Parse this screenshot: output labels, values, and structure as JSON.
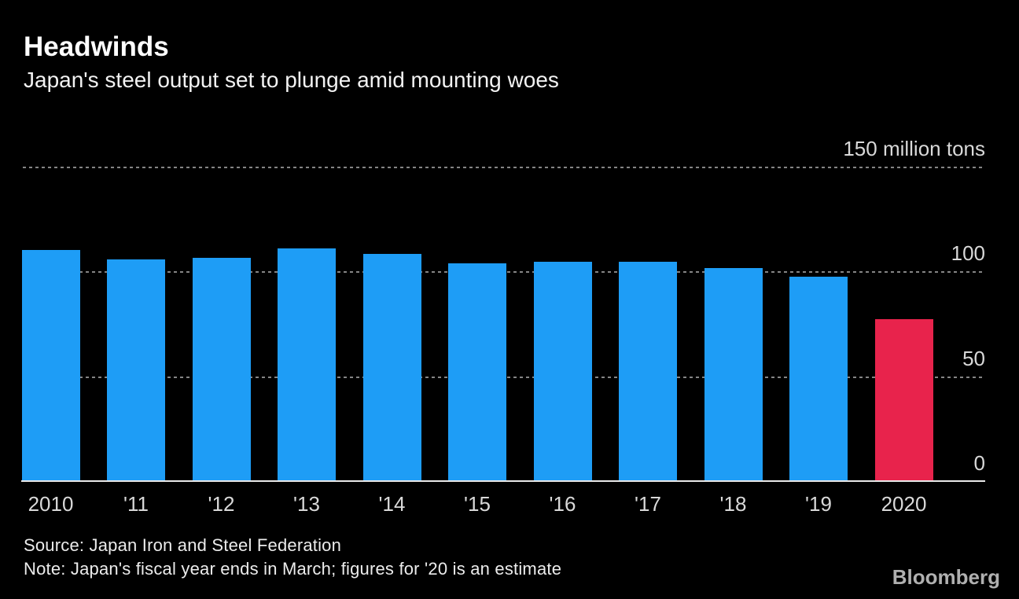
{
  "header": {
    "title": "Headwinds",
    "subtitle": "Japan's steel output set to plunge amid mounting woes"
  },
  "chart_data": {
    "type": "bar",
    "title": "Headwinds",
    "subtitle": "Japan's steel output set to plunge amid mounting woes",
    "categories": [
      "2010",
      "'11",
      "'12",
      "'13",
      "'14",
      "'15",
      "'16",
      "'17",
      "'18",
      "'19",
      "2020"
    ],
    "values": [
      110.7,
      106.0,
      107.0,
      111.4,
      108.8,
      104.2,
      105.0,
      104.9,
      102.0,
      98.0,
      77.5
    ],
    "unit": "million tons",
    "ylim": [
      0,
      150
    ],
    "yticks": [
      {
        "value": 150,
        "label": "150 million tons"
      },
      {
        "value": 100,
        "label": "100"
      },
      {
        "value": 50,
        "label": "50"
      },
      {
        "value": 0,
        "label": "0"
      }
    ],
    "grid": "horizontal-dotted",
    "legend": "none",
    "colors": {
      "bar_default": "#1e9df6",
      "bar_highlight": "#e8234c",
      "background": "#000000",
      "gridline": "#858585",
      "axis_line": "#e9e9e9",
      "tick_text": "#d9d9d9"
    },
    "highlight_index": 10
  },
  "footer": {
    "source": "Source: Japan Iron and Steel Federation",
    "note": "Note: Japan's fiscal year ends in March; figures for '20 is an estimate",
    "brand": "Bloomberg"
  }
}
